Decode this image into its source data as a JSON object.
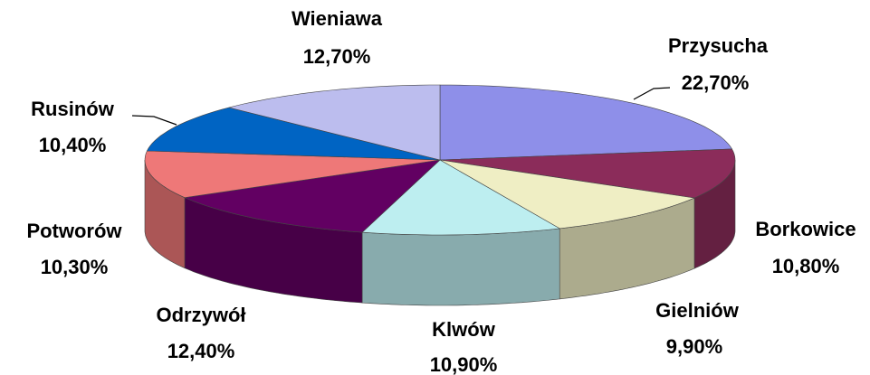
{
  "chart_data": {
    "type": "pie3d",
    "categories": [
      "Przysucha",
      "Borkowice",
      "Gielniów",
      "Klwów",
      "Odrzywół",
      "Potworów",
      "Rusinów",
      "Wieniawa"
    ],
    "values": [
      22.7,
      10.8,
      9.9,
      10.9,
      12.4,
      10.3,
      10.4,
      12.7
    ],
    "value_labels": [
      "22,70%",
      "10,80%",
      "9,90%",
      "10,90%",
      "12,40%",
      "10,30%",
      "10,40%",
      "12,70%"
    ],
    "colors": [
      "#8e8fe9",
      "#8b2c5a",
      "#efeec4",
      "#bdeef0",
      "#620062",
      "#ee7878",
      "#0064c3",
      "#bcbdee"
    ]
  }
}
